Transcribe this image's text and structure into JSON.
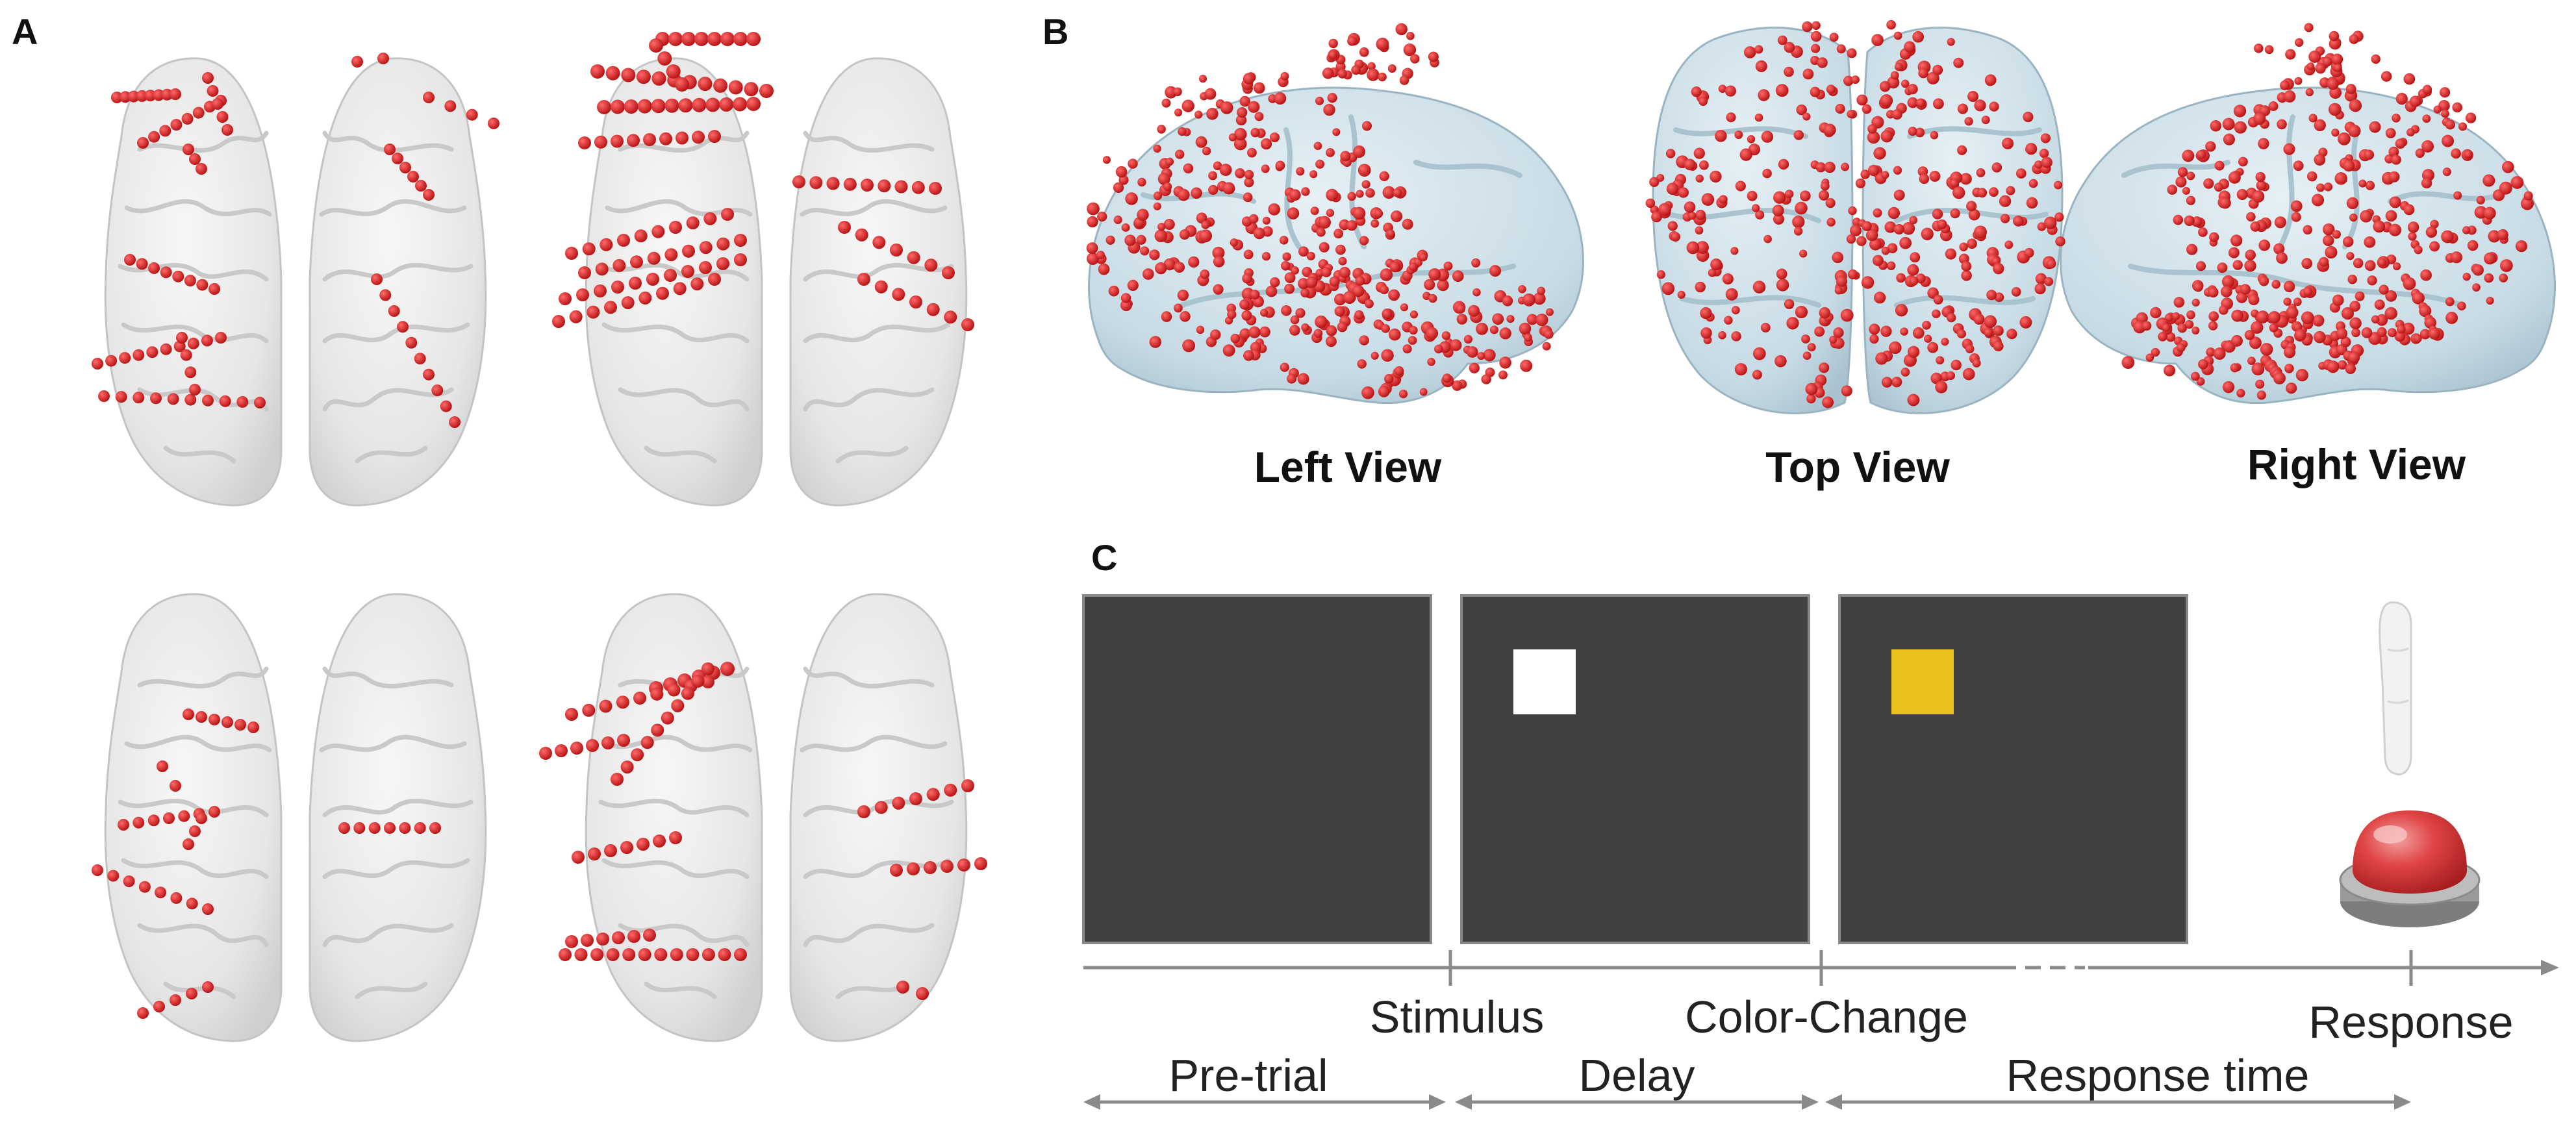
{
  "panels": {
    "a": {
      "letter": "A"
    },
    "b": {
      "letter": "B",
      "views": [
        "Left View",
        "Top View",
        "Right View"
      ]
    },
    "c": {
      "letter": "C"
    }
  },
  "timeline": {
    "events": [
      "Stimulus",
      "Color-Change",
      "Response"
    ],
    "intervals": [
      "Pre-trial",
      "Delay",
      "Response time"
    ]
  },
  "colors": {
    "electrode": "#d81c1c",
    "brain": "#ececec",
    "brain_b": "#c9dde7",
    "screen": "#414141",
    "stimulus_initial": "#ffffff",
    "stimulus_changed": "#e8c11c",
    "button": "#d93a3a",
    "axis": "#8a8a8a"
  },
  "icons": {
    "finger": "finger-icon",
    "button": "response-button-icon"
  }
}
